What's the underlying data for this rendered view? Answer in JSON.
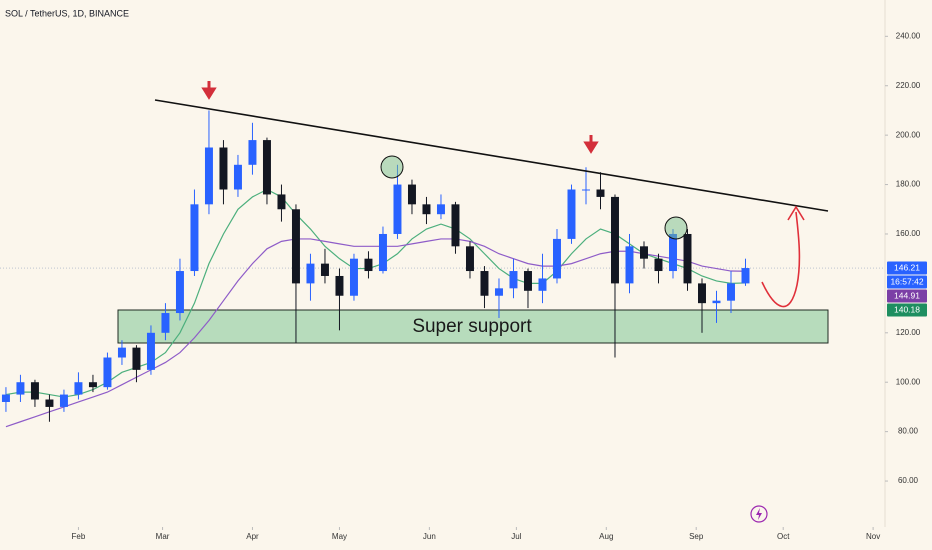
{
  "chart_data": {
    "type": "candlestick",
    "title": "SOL / TetherUS, 1D, BINANCE",
    "annotations": [
      "Super support"
    ],
    "up_color": "#2962ff",
    "down_color": "#131722",
    "x": [
      0,
      1,
      2,
      3,
      4,
      5,
      6,
      7,
      8,
      9,
      10,
      11,
      12,
      13,
      14,
      15,
      16,
      17,
      18,
      19,
      20,
      21,
      22,
      23,
      24,
      25,
      26,
      27,
      28,
      29,
      30,
      31,
      32,
      33,
      34,
      35,
      36,
      37,
      38,
      39,
      40,
      41,
      42,
      43,
      44,
      45,
      46,
      47,
      48,
      49,
      50,
      51
    ],
    "open": [
      92,
      95,
      100,
      93,
      90,
      95,
      100,
      98,
      110,
      114,
      105,
      120,
      128,
      145,
      172,
      195,
      178,
      188,
      198,
      176,
      170,
      140,
      148,
      143,
      135,
      150,
      145,
      160,
      180,
      172,
      168,
      172,
      155,
      145,
      135,
      138,
      145,
      137,
      142,
      158,
      178,
      178,
      175,
      140,
      155,
      150,
      145,
      160,
      140,
      132,
      133,
      140
    ],
    "high": [
      98,
      103,
      101,
      95,
      97,
      104,
      103,
      112,
      117,
      115,
      123,
      132,
      150,
      178,
      210,
      198,
      192,
      205,
      199,
      180,
      172,
      152,
      154,
      146,
      152,
      153,
      163,
      188,
      182,
      175,
      176,
      173,
      157,
      147,
      142,
      150,
      146,
      152,
      162,
      180,
      187,
      185,
      176,
      160,
      157,
      152,
      162,
      162,
      142,
      137,
      145,
      150
    ],
    "low": [
      88,
      92,
      90,
      84,
      88,
      93,
      96,
      97,
      107,
      100,
      103,
      117,
      125,
      143,
      168,
      172,
      175,
      184,
      172,
      165,
      116,
      133,
      140,
      121,
      133,
      142,
      144,
      158,
      168,
      164,
      166,
      152,
      142,
      130,
      126,
      134,
      130,
      132,
      140,
      156,
      172,
      170,
      110,
      136,
      146,
      140,
      142,
      137,
      120,
      124,
      128,
      139
    ],
    "close": [
      95,
      100,
      93,
      90,
      95,
      100,
      98,
      110,
      114,
      105,
      120,
      128,
      145,
      172,
      195,
      178,
      188,
      198,
      176,
      170,
      140,
      148,
      143,
      135,
      150,
      145,
      160,
      180,
      172,
      168,
      172,
      155,
      145,
      135,
      138,
      145,
      137,
      142,
      158,
      178,
      178,
      175,
      140,
      155,
      150,
      145,
      160,
      140,
      132,
      133,
      140,
      146.21
    ],
    "series": [
      {
        "color": "#4caf7d",
        "values": [
          95,
          96,
          96,
          95,
          94,
          95,
          97,
          100,
          104,
          106,
          108,
          112,
          120,
          132,
          148,
          160,
          170,
          175,
          178,
          175,
          168,
          162,
          155,
          150,
          146,
          146,
          148,
          152,
          158,
          162,
          164,
          162,
          158,
          152,
          146,
          142,
          140,
          140,
          145,
          152,
          158,
          162,
          160,
          156,
          152,
          150,
          148,
          146,
          143,
          141,
          140,
          140.18
        ]
      },
      {
        "color": "#8e5cc8",
        "values": [
          82,
          84,
          86,
          88,
          90,
          92,
          94,
          96,
          99,
          102,
          105,
          108,
          112,
          118,
          125,
          133,
          141,
          148,
          154,
          157,
          158,
          158,
          157,
          156,
          155,
          155,
          155,
          155,
          156,
          157,
          158,
          158,
          157,
          155,
          152,
          150,
          148,
          147,
          147,
          148,
          150,
          152,
          153,
          153,
          152,
          151,
          150,
          149,
          147,
          146,
          145,
          144.91
        ]
      }
    ],
    "xlim": [
      -0.41,
      60.62
    ],
    "ylim": [
      41.4,
      254.7
    ],
    "xticks": [
      {
        "value": 5,
        "label": "Feb"
      },
      {
        "value": 10.8,
        "label": "Mar"
      },
      {
        "value": 17,
        "label": "Apr"
      },
      {
        "value": 23,
        "label": "May"
      },
      {
        "value": 29.2,
        "label": "Jun"
      },
      {
        "value": 35.2,
        "label": "Jul"
      },
      {
        "value": 41.4,
        "label": "Aug"
      },
      {
        "value": 47.6,
        "label": "Sep"
      },
      {
        "value": 53.6,
        "label": "Oct"
      },
      {
        "value": 59.8,
        "label": "Nov"
      }
    ],
    "yticks": [
      {
        "value": 60,
        "label": "60.00"
      },
      {
        "value": 80,
        "label": "80.00"
      },
      {
        "value": 100,
        "label": "100.00"
      },
      {
        "value": 120,
        "label": "120.00"
      },
      {
        "value": 160,
        "label": "160.00"
      },
      {
        "value": 180,
        "label": "180.00"
      },
      {
        "value": 200,
        "label": "200.00"
      },
      {
        "value": 220,
        "label": "220.00"
      },
      {
        "value": 240,
        "label": "240.00"
      }
    ],
    "price_labels": [
      {
        "value": 146.21,
        "color": "#2962ff"
      },
      {
        "value": 144.91,
        "color": "#7b3fa6"
      },
      {
        "value": 140.18,
        "color": "#1e8e60"
      }
    ],
    "countdown": "16:57:42"
  }
}
